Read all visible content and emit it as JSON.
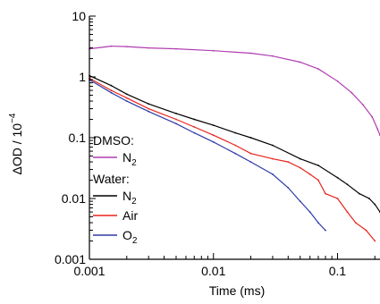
{
  "chart_data": {
    "type": "line",
    "xscale": "log",
    "yscale": "log",
    "xlim": [
      0.001,
      0.22
    ],
    "ylim": [
      0.001,
      10
    ],
    "xlabel": "Time (ms)",
    "ylabel": "ΔOD / 10",
    "ylabel_exponent": "−4",
    "x_ticks": [
      0.001,
      0.01,
      0.1
    ],
    "x_tick_labels": [
      "0.001",
      "0.01",
      "0.1"
    ],
    "y_ticks": [
      0.001,
      0.01,
      0.1,
      1,
      10
    ],
    "y_tick_labels": [
      "0.001",
      "0.01",
      "0.1",
      "1",
      "10"
    ],
    "grid": false,
    "legend_placement": "bottom-left",
    "legend_groups": [
      {
        "heading": "DMSO:",
        "entries": [
          {
            "base": "N",
            "sub": "2",
            "color": "#b03db0"
          }
        ]
      },
      {
        "heading": "Water:",
        "entries": [
          {
            "base": "N",
            "sub": "2",
            "color": "#000000"
          },
          {
            "base": "Air",
            "sub": "",
            "color": "#e8231d"
          },
          {
            "base": "O",
            "sub": "2",
            "color": "#2e3aa6"
          }
        ]
      }
    ],
    "series": [
      {
        "group": "DMSO",
        "color": "#b03db0",
        "x": [
          0.001,
          0.0015,
          0.002,
          0.003,
          0.005,
          0.01,
          0.02,
          0.03,
          0.05,
          0.07,
          0.1,
          0.13,
          0.16,
          0.19,
          0.21,
          0.22
        ],
        "y": [
          2.9,
          3.2,
          3.15,
          3.0,
          2.9,
          2.7,
          2.45,
          2.2,
          1.75,
          1.35,
          0.85,
          0.55,
          0.35,
          0.22,
          0.14,
          0.11
        ]
      },
      {
        "group": "Water",
        "color": "#000000",
        "x": [
          0.001,
          0.0015,
          0.002,
          0.003,
          0.005,
          0.007,
          0.01,
          0.015,
          0.02,
          0.03,
          0.05,
          0.07,
          0.1,
          0.12,
          0.15,
          0.18,
          0.2,
          0.22
        ],
        "y": [
          1.05,
          0.72,
          0.52,
          0.36,
          0.25,
          0.2,
          0.16,
          0.12,
          0.1,
          0.075,
          0.045,
          0.035,
          0.022,
          0.017,
          0.012,
          0.01,
          0.008,
          0.006
        ]
      },
      {
        "group": "Water",
        "color": "#e8231d",
        "x": [
          0.001,
          0.0015,
          0.002,
          0.003,
          0.005,
          0.007,
          0.01,
          0.015,
          0.02,
          0.03,
          0.04,
          0.05,
          0.06,
          0.07,
          0.08,
          0.1,
          0.12,
          0.14,
          0.17,
          0.2
        ],
        "y": [
          0.95,
          0.6,
          0.45,
          0.3,
          0.2,
          0.15,
          0.11,
          0.075,
          0.055,
          0.045,
          0.04,
          0.032,
          0.025,
          0.02,
          0.012,
          0.01,
          0.006,
          0.004,
          0.003,
          0.002
        ]
      },
      {
        "group": "Water",
        "color": "#2e3aa6",
        "x": [
          0.001,
          0.0015,
          0.002,
          0.003,
          0.005,
          0.007,
          0.01,
          0.015,
          0.02,
          0.03,
          0.04,
          0.05,
          0.06,
          0.07,
          0.08
        ],
        "y": [
          0.9,
          0.55,
          0.4,
          0.27,
          0.17,
          0.12,
          0.085,
          0.055,
          0.04,
          0.025,
          0.015,
          0.009,
          0.006,
          0.004,
          0.003
        ]
      }
    ]
  }
}
